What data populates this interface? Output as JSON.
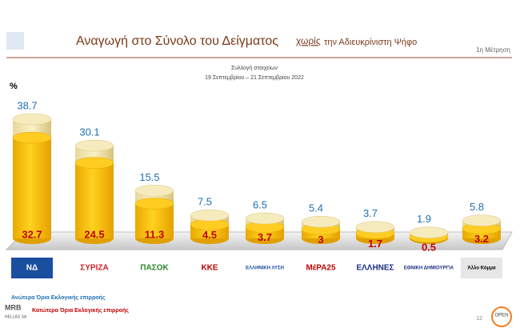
{
  "chart_data": {
    "type": "bar",
    "title": "Αναγωγή στο Σύνολο του Δείγματος",
    "title_emphasis": "χωρίς",
    "title_rest": "την Αδιευκρίνιστη Ψήφο",
    "measurement": "1η Μέτρηση",
    "subtitle": "Συλλογή στοιχείων",
    "date_range": "19 Σεπτεμβρίου – 21 Σεπτεμβρίου 2022",
    "unit_label": "%",
    "categories": [
      "ΝΔ",
      "ΣΥΡΙΖΑ",
      "ΠΑΣΟΚ",
      "ΚΚΕ",
      "ΕΛΛΗΝΙΚΗ ΛΥΣΗ",
      "ΜέΡΑ25",
      "ΕΛΛΗΝΕΣ",
      "ΕΘΝΙΚΗ ΔΗΜΙΟΥΡΓΙΑ",
      "Άλλο Κόμμα"
    ],
    "series": [
      {
        "name": "Ανώτερα Όρια Εκλογικής επιρροής",
        "color": "#1f6fb4",
        "values": [
          38.7,
          30.1,
          15.5,
          7.5,
          6.5,
          5.4,
          3.7,
          1.9,
          5.8
        ]
      },
      {
        "name": "Κατώτερα Όρια Εκλογικής επιρροής",
        "color": "#c00000",
        "values": [
          32.7,
          24.5,
          11.3,
          4.5,
          3.7,
          3,
          1.7,
          0.5,
          3.2
        ]
      }
    ],
    "footer_logo": "MRB",
    "footer_sub": "HELLAS SA",
    "page_number": "12",
    "brand": "OPEN"
  }
}
